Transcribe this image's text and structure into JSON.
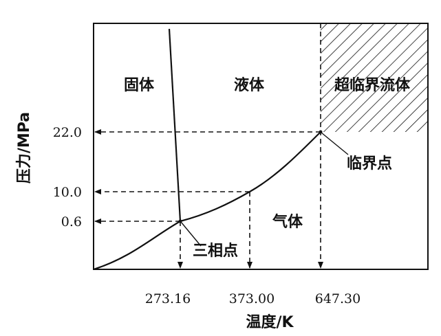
{
  "diagram": {
    "y_axis_label": "压力/MPa",
    "x_axis_label": "温度/K",
    "y_ticks": [
      "22.0",
      "10.0",
      "0.6"
    ],
    "x_ticks": [
      "273.16",
      "373.00",
      "647.30"
    ],
    "regions": {
      "solid": "固体",
      "liquid": "液体",
      "supercritical": "超临界流体",
      "gas": "气体"
    },
    "points": {
      "triple_point": "三相点",
      "critical_point": "临界点"
    }
  }
}
